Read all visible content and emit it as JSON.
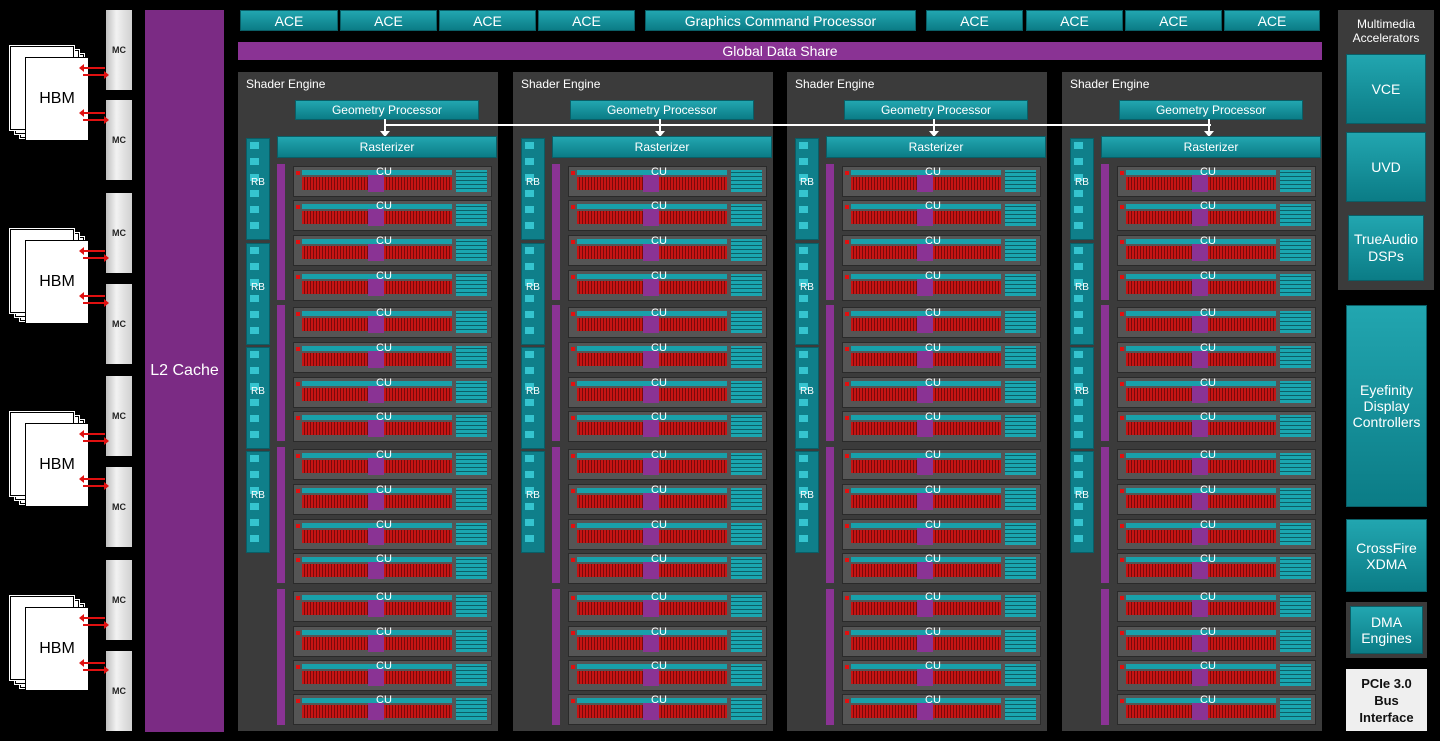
{
  "memory": {
    "hbm_label": "HBM",
    "mc_label": "MC"
  },
  "l2": {
    "label": "L2 Cache"
  },
  "top_bar": {
    "ace_label": "ACE",
    "gcp_label": "Graphics Command Processor"
  },
  "gds_label": "Global Data Share",
  "shader_engine": {
    "title": "Shader Engine",
    "geometry_label": "Geometry Processor",
    "rasterizer_label": "Rasterizer",
    "rb_label": "RB",
    "cu_label": "CU"
  },
  "right_panel": {
    "multimedia_title": "Multimedia Accelerators",
    "vce": "VCE",
    "uvd": "UVD",
    "trueaudio": "TrueAudio DSPs",
    "eyefinity": "Eyefinity Display Controllers",
    "crossfire": "CrossFire XDMA",
    "dma": "DMA Engines",
    "pcie": "PCIe 3.0 Bus Interface"
  },
  "colors": {
    "teal": "#1b97a1",
    "purple": "#7b2b84",
    "red": "#c61414",
    "panel": "#3b3b3b"
  }
}
